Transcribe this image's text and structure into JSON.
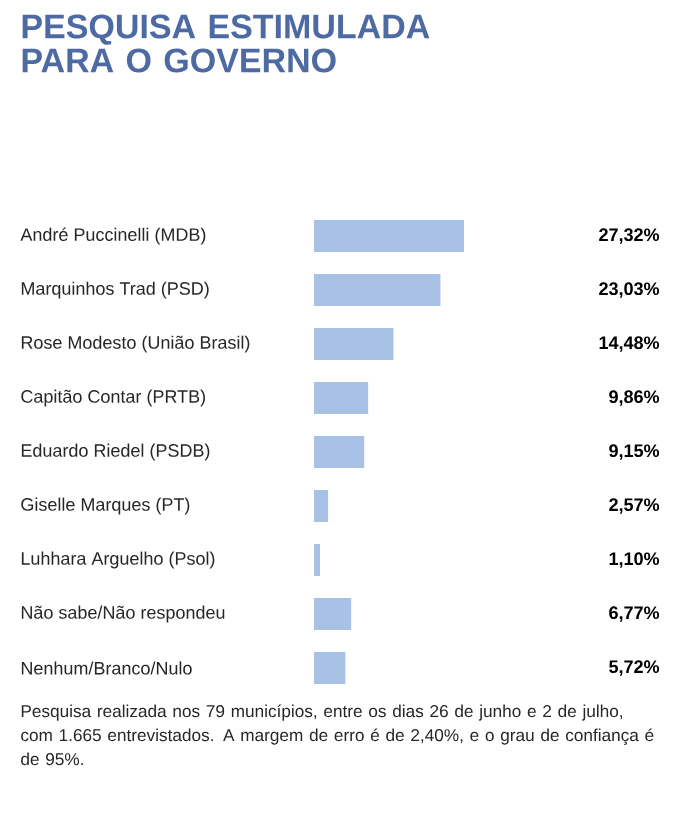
{
  "chart_data": {
    "type": "bar",
    "orientation": "horizontal",
    "title": "PESQUISA ESTIMULADA PARA O GOVERNO",
    "categories": [
      "André Puccinelli (MDB)",
      "Marquinhos Trad (PSD)",
      "Rose Modesto (União Brasil)",
      "Capitão Contar (PRTB)",
      "Eduardo Riedel (PSDB)",
      "Giselle Marques (PT)",
      "Luhhara Arguelho (Psol)",
      "Não sabe/Não respondeu",
      "Nenhum/Branco/Nulo"
    ],
    "values": [
      27.32,
      23.03,
      14.48,
      9.86,
      9.15,
      2.57,
      1.1,
      6.77,
      5.72
    ],
    "value_labels": [
      "27,32%",
      "23,03%",
      "14,48%",
      "9,86%",
      "9,15%",
      "2,57%",
      "1,10%",
      "6,77%",
      "5,72%"
    ],
    "color": "#a8c1e4",
    "annotations": [
      "Pesquisa realizada nos 79 municípios, entre os dias 26 de junho e 2 de julho, com 1.665 entrevistados. A margem de erro é de 2,40%, e o grau de confiança é de 95%."
    ]
  }
}
